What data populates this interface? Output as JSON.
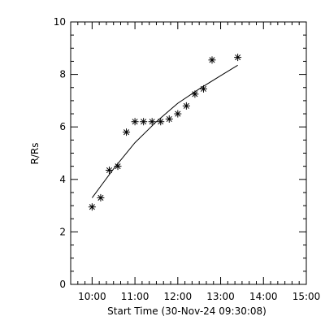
{
  "chart_data": {
    "type": "scatter",
    "xlabel": "Start Time (30-Nov-24 09:30:08)",
    "ylabel": "R/Rs",
    "xlim": [
      "09:30",
      "15:00"
    ],
    "ylim": [
      0,
      10
    ],
    "x_tick_labels": [
      "10:00",
      "11:00",
      "12:00",
      "13:00",
      "14:00",
      "15:00"
    ],
    "y_tick_labels": [
      "0",
      "2",
      "4",
      "6",
      "8",
      "10"
    ],
    "grid": false,
    "series": [
      {
        "marker": "asterisk",
        "x": [
          "10:00",
          "10:12",
          "10:24",
          "10:36",
          "10:48",
          "11:00",
          "11:12",
          "11:24",
          "11:36",
          "11:48",
          "12:00",
          "12:12",
          "12:24",
          "12:36",
          "12:48",
          "13:24"
        ],
        "y": [
          2.95,
          3.3,
          4.35,
          4.5,
          5.8,
          6.2,
          6.2,
          6.2,
          6.2,
          6.3,
          6.5,
          6.8,
          7.25,
          7.45,
          8.55,
          8.65
        ]
      },
      {
        "line": "fit",
        "x": [
          "10:00",
          "10:30",
          "11:00",
          "11:30",
          "12:00",
          "12:30",
          "13:00",
          "13:24"
        ],
        "y": [
          3.3,
          4.4,
          5.4,
          6.2,
          6.9,
          7.45,
          7.95,
          8.35
        ]
      }
    ]
  }
}
